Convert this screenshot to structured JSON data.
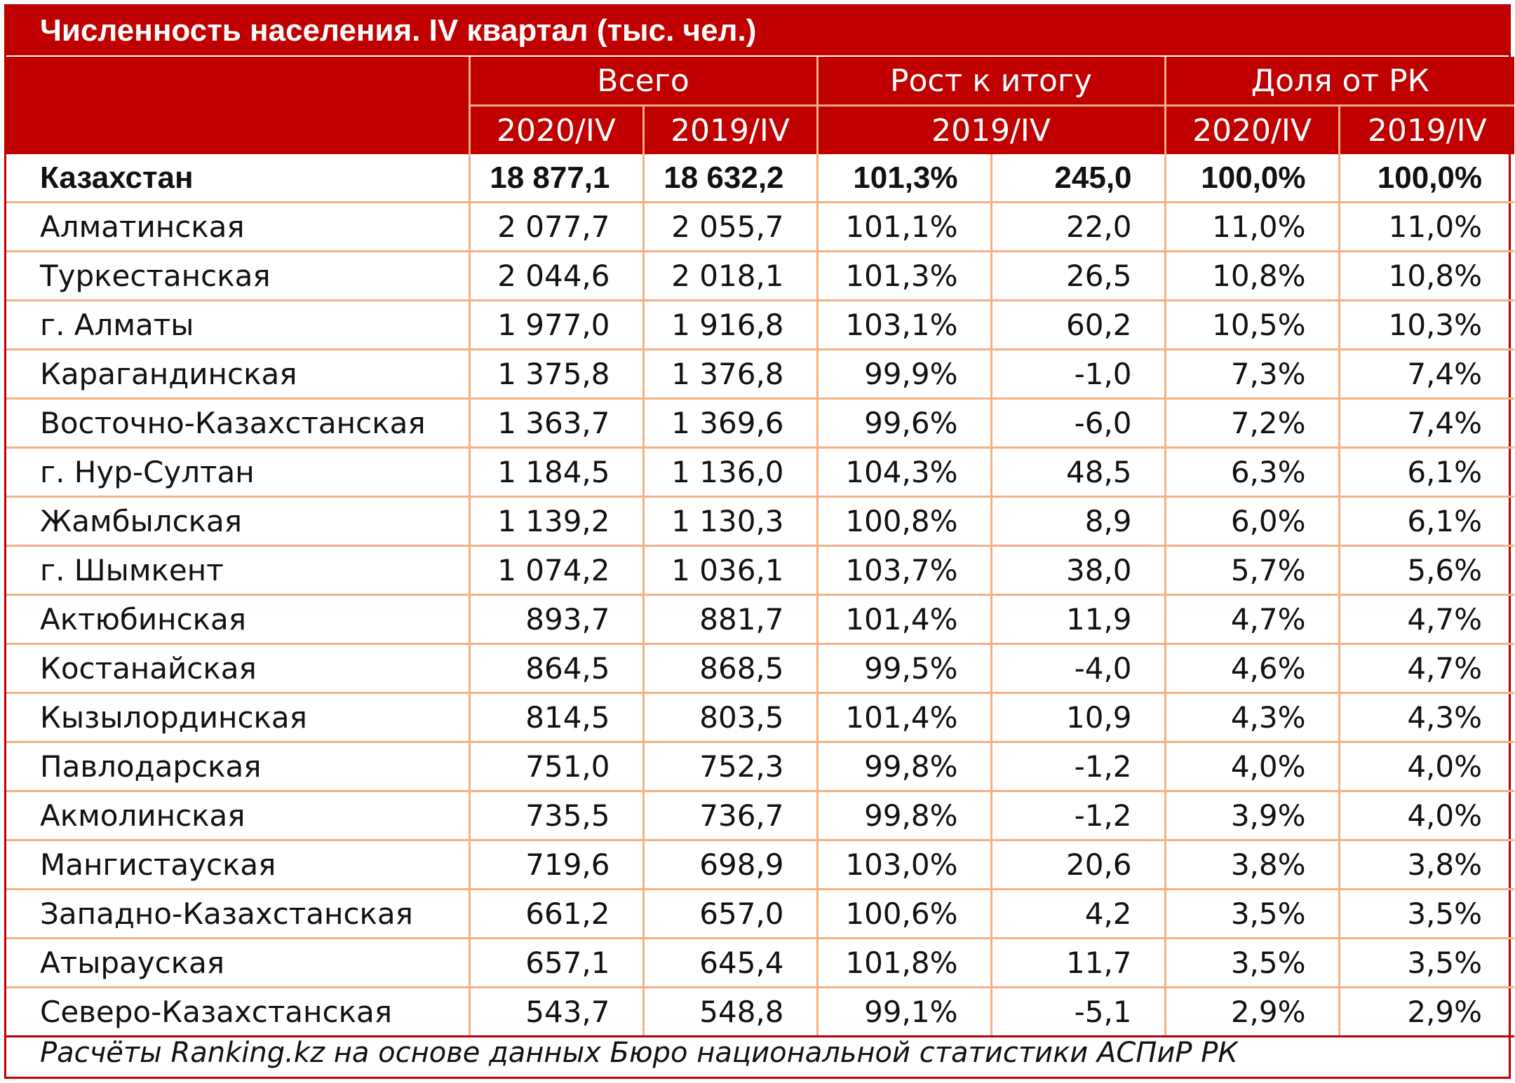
{
  "title": "Численность населения. IV квартал (тыс. чел.)",
  "headers": {
    "group_total": "Всего",
    "group_growth": "Рост к итогу",
    "group_share": "Доля от РК",
    "sub_total_a": "2020/IV",
    "sub_total_b": "2019/IV",
    "sub_growth": "2019/IV",
    "sub_share_a": "2020/IV",
    "sub_share_b": "2019/IV"
  },
  "footnote": "Расчёты Ranking.kz на основе данных Бюро национальной статистики АСПиР РК",
  "chart_data": {
    "type": "table",
    "title": "Численность населения. IV квартал (тыс. чел.)",
    "columns": [
      "",
      "Всего 2020/IV",
      "Всего 2019/IV",
      "Рост к итогу 2019/IV (%)",
      "Рост к итогу 2019/IV",
      "Доля от РК 2020/IV",
      "Доля от РК 2019/IV"
    ],
    "rows": [
      [
        "Казахстан",
        "18 877,1",
        "18 632,2",
        "101,3%",
        "245,0",
        "100,0%",
        "100,0%"
      ],
      [
        "Алматинская",
        "2 077,7",
        "2 055,7",
        "101,1%",
        "22,0",
        "11,0%",
        "11,0%"
      ],
      [
        "Туркестанская",
        "2 044,6",
        "2 018,1",
        "101,3%",
        "26,5",
        "10,8%",
        "10,8%"
      ],
      [
        "г. Алматы",
        "1 977,0",
        "1 916,8",
        "103,1%",
        "60,2",
        "10,5%",
        "10,3%"
      ],
      [
        "Карагандинская",
        "1 375,8",
        "1 376,8",
        "99,9%",
        "-1,0",
        "7,3%",
        "7,4%"
      ],
      [
        "Восточно-Казахстанская",
        "1 363,7",
        "1 369,6",
        "99,6%",
        "-6,0",
        "7,2%",
        "7,4%"
      ],
      [
        "г. Нур-Султан",
        "1 184,5",
        "1 136,0",
        "104,3%",
        "48,5",
        "6,3%",
        "6,1%"
      ],
      [
        "Жамбылская",
        "1 139,2",
        "1 130,3",
        "100,8%",
        "8,9",
        "6,0%",
        "6,1%"
      ],
      [
        "г. Шымкент",
        "1 074,2",
        "1 036,1",
        "103,7%",
        "38,0",
        "5,7%",
        "5,6%"
      ],
      [
        "Актюбинская",
        "893,7",
        "881,7",
        "101,4%",
        "11,9",
        "4,7%",
        "4,7%"
      ],
      [
        "Костанайская",
        "864,5",
        "868,5",
        "99,5%",
        "-4,0",
        "4,6%",
        "4,7%"
      ],
      [
        "Кызылординская",
        "814,5",
        "803,5",
        "101,4%",
        "10,9",
        "4,3%",
        "4,3%"
      ],
      [
        "Павлодарская",
        "751,0",
        "752,3",
        "99,8%",
        "-1,2",
        "4,0%",
        "4,0%"
      ],
      [
        "Акмолинская",
        "735,5",
        "736,7",
        "99,8%",
        "-1,2",
        "3,9%",
        "4,0%"
      ],
      [
        "Мангистауская",
        "719,6",
        "698,9",
        "103,0%",
        "20,6",
        "3,8%",
        "3,8%"
      ],
      [
        "Западно-Казахстанская",
        "661,2",
        "657,0",
        "100,6%",
        "4,2",
        "3,5%",
        "3,5%"
      ],
      [
        "Атырауская",
        "657,1",
        "645,4",
        "101,8%",
        "11,7",
        "3,5%",
        "3,5%"
      ],
      [
        "Северо-Казахстанская",
        "543,7",
        "548,8",
        "99,1%",
        "-5,1",
        "2,9%",
        "2,9%"
      ]
    ]
  }
}
